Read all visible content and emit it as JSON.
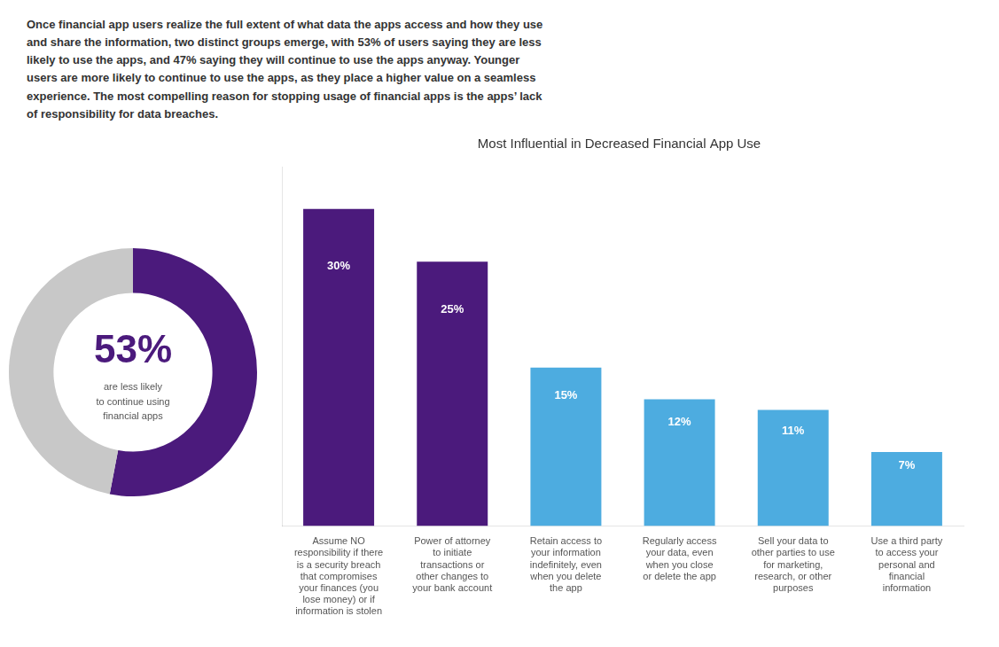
{
  "chart_data": [
    {
      "type": "doughnut",
      "values": [
        53,
        47
      ],
      "colors": [
        "#4B1A7C",
        "#C8C8C8"
      ],
      "annotations": [
        "53%",
        "are less likely\nto continue using\nfinancial apps"
      ]
    },
    {
      "type": "bar",
      "title": "Most Influential in Decreased Financial App Use",
      "subtitle": "Once financial app users realize the full extent of what data the apps access and how they use\nand share the information, two distinct groups emerge, with 53% of users saying they are less\nlikely to use the apps, and 47% saying they will continue to use the apps anyway. Younger\nusers are more likely to continue to use the apps, as they place a higher value on a seamless\nexperience. The most compelling reason for stopping usage of financial apps is the apps’ lack\nof responsibility for data breaches.",
      "categories": [
        "Assume NO\nresponsibility if there\nis a security breach\nthat compromises\nyour finances (you\nlose money) or if\ninformation is stolen",
        "Power of attorney\nto initiate\ntransactions or\nother changes to\nyour bank account",
        "Retain access to\nyour information\nindefinitely, even\nwhen you delete\nthe app",
        "Regularly access\nyour data, even\nwhen you close\nor delete the app",
        "Sell your data to\nother parties to use\nfor marketing,\nresearch, or other\npurposes",
        "Use a third party\nto access your\npersonal and\nfinancial\ninformation"
      ],
      "values": [
        30,
        25,
        15,
        12,
        11,
        7
      ],
      "value_labels": [
        "30%",
        "25%",
        "15%",
        "12%",
        "11%",
        "7%"
      ],
      "data_labels": true,
      "colors": [
        "#4B1A7C",
        "#4B1A7C",
        "#4DACE0",
        "#4DACE0",
        "#4DACE0",
        "#4DACE0"
      ],
      "ylim": [
        0,
        34
      ],
      "tick_labels": false,
      "grid": false
    }
  ]
}
